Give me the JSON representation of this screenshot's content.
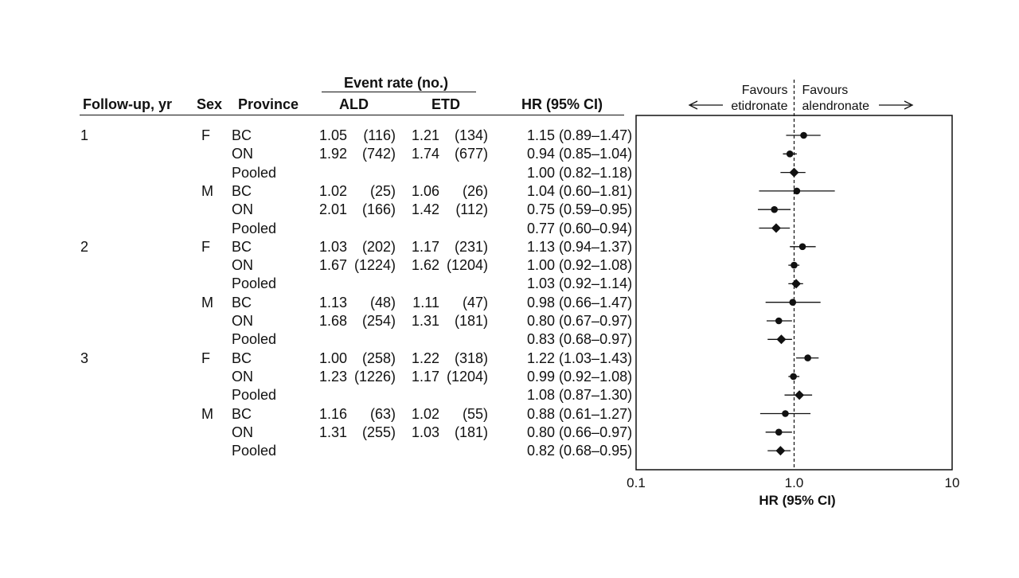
{
  "table": {
    "headers": {
      "followup": "Follow-up, yr",
      "sex": "Sex",
      "province": "Province",
      "event_rate": "Event rate (no.)",
      "ald": "ALD",
      "etd": "ETD",
      "hr": "HR (95% CI)"
    }
  },
  "chart_data": {
    "type": "forest",
    "xlabel": "HR (95% CI)",
    "xscale": "log",
    "xlim": [
      0.1,
      10
    ],
    "xticks": [
      "0.1",
      "1.0",
      "10"
    ],
    "reference_line": 1.0,
    "annotations": {
      "left_top": "Favours",
      "left_bottom": "etidronate",
      "right_top": "Favours",
      "right_bottom": "alendronate"
    },
    "rows": [
      {
        "followup": "1",
        "sex": "F",
        "province": "BC",
        "ald_rate": "1.05",
        "ald_n": "(116)",
        "etd_rate": "1.21",
        "etd_n": "(134)",
        "hr_text": "1.15 (0.89–1.47)",
        "hr": 1.15,
        "lo": 0.89,
        "hi": 1.47,
        "pooled": false
      },
      {
        "followup": "",
        "sex": "",
        "province": "ON",
        "ald_rate": "1.92",
        "ald_n": "(742)",
        "etd_rate": "1.74",
        "etd_n": "(677)",
        "hr_text": "0.94 (0.85–1.04)",
        "hr": 0.94,
        "lo": 0.85,
        "hi": 1.04,
        "pooled": false
      },
      {
        "followup": "",
        "sex": "",
        "province": "Pooled",
        "ald_rate": "",
        "ald_n": "",
        "etd_rate": "",
        "etd_n": "",
        "hr_text": "1.00 (0.82–1.18)",
        "hr": 1.0,
        "lo": 0.82,
        "hi": 1.18,
        "pooled": true
      },
      {
        "followup": "",
        "sex": "M",
        "province": "BC",
        "ald_rate": "1.02",
        "ald_n": "(25)",
        "etd_rate": "1.06",
        "etd_n": "(26)",
        "hr_text": "1.04 (0.60–1.81)",
        "hr": 1.04,
        "lo": 0.6,
        "hi": 1.81,
        "pooled": false
      },
      {
        "followup": "",
        "sex": "",
        "province": "ON",
        "ald_rate": "2.01",
        "ald_n": "(166)",
        "etd_rate": "1.42",
        "etd_n": "(112)",
        "hr_text": "0.75 (0.59–0.95)",
        "hr": 0.75,
        "lo": 0.59,
        "hi": 0.95,
        "pooled": false
      },
      {
        "followup": "",
        "sex": "",
        "province": "Pooled",
        "ald_rate": "",
        "ald_n": "",
        "etd_rate": "",
        "etd_n": "",
        "hr_text": "0.77 (0.60–0.94)",
        "hr": 0.77,
        "lo": 0.6,
        "hi": 0.94,
        "pooled": true
      },
      {
        "followup": "2",
        "sex": "F",
        "province": "BC",
        "ald_rate": "1.03",
        "ald_n": "(202)",
        "etd_rate": "1.17",
        "etd_n": "(231)",
        "hr_text": "1.13 (0.94–1.37)",
        "hr": 1.13,
        "lo": 0.94,
        "hi": 1.37,
        "pooled": false
      },
      {
        "followup": "",
        "sex": "",
        "province": "ON",
        "ald_rate": "1.67",
        "ald_n": "(1224)",
        "etd_rate": "1.62",
        "etd_n": "(1204)",
        "hr_text": "1.00 (0.92–1.08)",
        "hr": 1.0,
        "lo": 0.92,
        "hi": 1.08,
        "pooled": false
      },
      {
        "followup": "",
        "sex": "",
        "province": "Pooled",
        "ald_rate": "",
        "ald_n": "",
        "etd_rate": "",
        "etd_n": "",
        "hr_text": "1.03 (0.92–1.14)",
        "hr": 1.03,
        "lo": 0.92,
        "hi": 1.14,
        "pooled": true
      },
      {
        "followup": "",
        "sex": "M",
        "province": "BC",
        "ald_rate": "1.13",
        "ald_n": "(48)",
        "etd_rate": "1.11",
        "etd_n": "(47)",
        "hr_text": "0.98 (0.66–1.47)",
        "hr": 0.98,
        "lo": 0.66,
        "hi": 1.47,
        "pooled": false
      },
      {
        "followup": "",
        "sex": "",
        "province": "ON",
        "ald_rate": "1.68",
        "ald_n": "(254)",
        "etd_rate": "1.31",
        "etd_n": "(181)",
        "hr_text": "0.80 (0.67–0.97)",
        "hr": 0.8,
        "lo": 0.67,
        "hi": 0.97,
        "pooled": false
      },
      {
        "followup": "",
        "sex": "",
        "province": "Pooled",
        "ald_rate": "",
        "ald_n": "",
        "etd_rate": "",
        "etd_n": "",
        "hr_text": "0.83 (0.68–0.97)",
        "hr": 0.83,
        "lo": 0.68,
        "hi": 0.97,
        "pooled": true
      },
      {
        "followup": "3",
        "sex": "F",
        "province": "BC",
        "ald_rate": "1.00",
        "ald_n": "(258)",
        "etd_rate": "1.22",
        "etd_n": "(318)",
        "hr_text": "1.22 (1.03–1.43)",
        "hr": 1.22,
        "lo": 1.03,
        "hi": 1.43,
        "pooled": false
      },
      {
        "followup": "",
        "sex": "",
        "province": "ON",
        "ald_rate": "1.23",
        "ald_n": "(1226)",
        "etd_rate": "1.17",
        "etd_n": "(1204)",
        "hr_text": "0.99 (0.92–1.08)",
        "hr": 0.99,
        "lo": 0.92,
        "hi": 1.08,
        "pooled": false
      },
      {
        "followup": "",
        "sex": "",
        "province": "Pooled",
        "ald_rate": "",
        "ald_n": "",
        "etd_rate": "",
        "etd_n": "",
        "hr_text": "1.08 (0.87–1.30)",
        "hr": 1.08,
        "lo": 0.87,
        "hi": 1.3,
        "pooled": true
      },
      {
        "followup": "",
        "sex": "M",
        "province": "BC",
        "ald_rate": "1.16",
        "ald_n": "(63)",
        "etd_rate": "1.02",
        "etd_n": "(55)",
        "hr_text": "0.88 (0.61–1.27)",
        "hr": 0.88,
        "lo": 0.61,
        "hi": 1.27,
        "pooled": false
      },
      {
        "followup": "",
        "sex": "",
        "province": "ON",
        "ald_rate": "1.31",
        "ald_n": "(255)",
        "etd_rate": "1.03",
        "etd_n": "(181)",
        "hr_text": "0.80 (0.66–0.97)",
        "hr": 0.8,
        "lo": 0.66,
        "hi": 0.97,
        "pooled": false
      },
      {
        "followup": "",
        "sex": "",
        "province": "Pooled",
        "ald_rate": "",
        "ald_n": "",
        "etd_rate": "",
        "etd_n": "",
        "hr_text": "0.82 (0.68–0.95)",
        "hr": 0.82,
        "lo": 0.68,
        "hi": 0.95,
        "pooled": true
      }
    ]
  }
}
